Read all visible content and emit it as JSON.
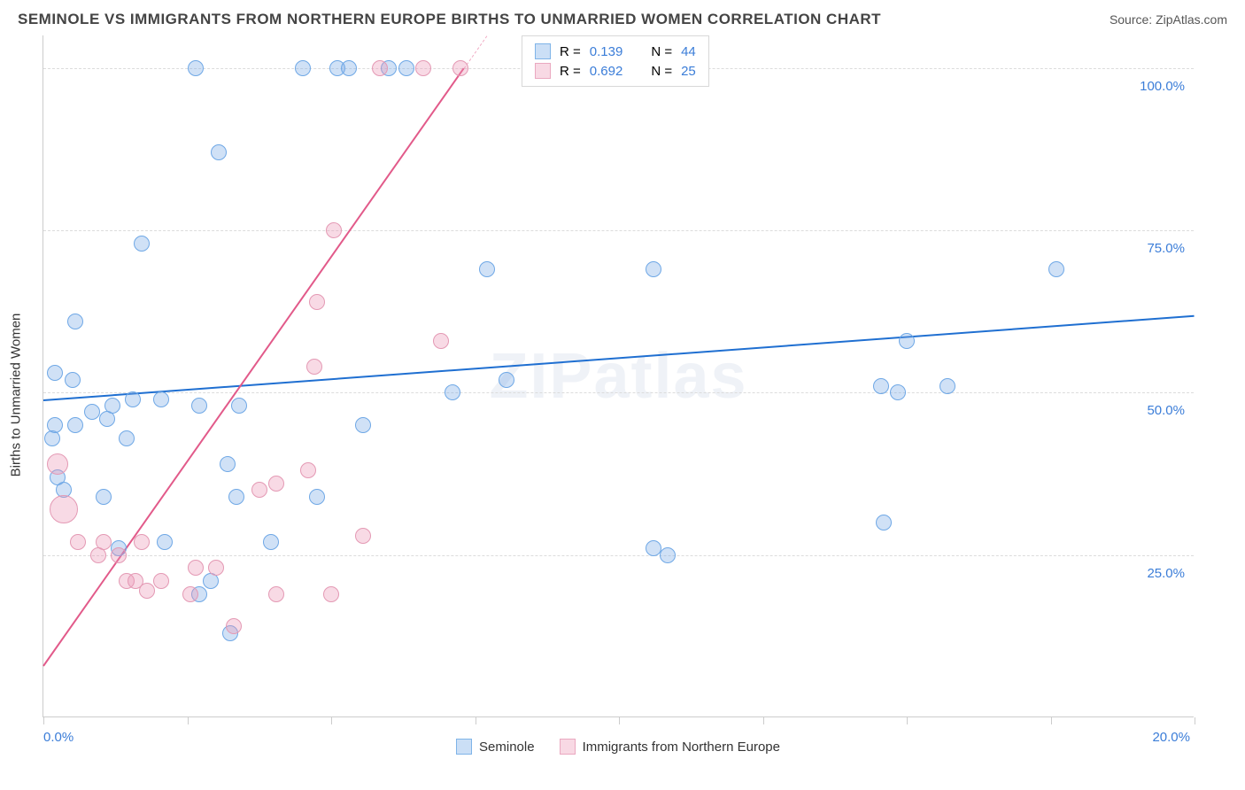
{
  "header": {
    "title": "SEMINOLE VS IMMIGRANTS FROM NORTHERN EUROPE BIRTHS TO UNMARRIED WOMEN CORRELATION CHART",
    "source": "Source: ZipAtlas.com"
  },
  "chart": {
    "type": "scatter",
    "y_axis_label": "Births to Unmarried Women",
    "watermark": "ZIPatlas",
    "background_color": "#ffffff",
    "grid_color": "#dcdcdc",
    "axis_color": "#cccccc",
    "xlim": [
      0,
      20
    ],
    "ylim": [
      0,
      105
    ],
    "x_ticks": [
      0,
      2.5,
      5,
      7.5,
      10,
      12.5,
      15,
      17.5,
      20
    ],
    "x_tick_labels": {
      "0": "0.0%",
      "20": "20.0%"
    },
    "y_gridlines": [
      25,
      50,
      75,
      100
    ],
    "y_tick_labels": {
      "25": "25.0%",
      "50": "50.0%",
      "75": "75.0%",
      "100": "100.0%"
    },
    "point_radius": 9,
    "point_stroke_width": 1.5,
    "series": [
      {
        "name": "Seminole",
        "fill": "rgba(120,170,230,0.35)",
        "stroke": "#6fa8e6",
        "legend_fill": "rgba(140,185,235,0.45)",
        "legend_stroke": "#7fb4e8",
        "trend": {
          "color": "#1f6fd1",
          "y_at_x0": 49,
          "y_at_xmax": 62,
          "solid_until_x": 20
        },
        "R": "0.139",
        "N": "44",
        "points": [
          {
            "x": 0.15,
            "y": 43
          },
          {
            "x": 0.2,
            "y": 45
          },
          {
            "x": 0.25,
            "y": 37
          },
          {
            "x": 0.35,
            "y": 35
          },
          {
            "x": 0.2,
            "y": 53
          },
          {
            "x": 0.5,
            "y": 52
          },
          {
            "x": 0.55,
            "y": 61
          },
          {
            "x": 0.55,
            "y": 45
          },
          {
            "x": 0.85,
            "y": 47
          },
          {
            "x": 1.05,
            "y": 34
          },
          {
            "x": 1.1,
            "y": 46
          },
          {
            "x": 1.2,
            "y": 48
          },
          {
            "x": 1.3,
            "y": 26
          },
          {
            "x": 1.45,
            "y": 43
          },
          {
            "x": 1.55,
            "y": 49
          },
          {
            "x": 1.7,
            "y": 73
          },
          {
            "x": 2.05,
            "y": 49
          },
          {
            "x": 2.1,
            "y": 27
          },
          {
            "x": 2.65,
            "y": 100
          },
          {
            "x": 2.7,
            "y": 48
          },
          {
            "x": 2.7,
            "y": 19
          },
          {
            "x": 2.9,
            "y": 21
          },
          {
            "x": 3.05,
            "y": 87
          },
          {
            "x": 3.2,
            "y": 39
          },
          {
            "x": 3.25,
            "y": 13
          },
          {
            "x": 3.35,
            "y": 34
          },
          {
            "x": 3.4,
            "y": 48
          },
          {
            "x": 3.95,
            "y": 27
          },
          {
            "x": 4.5,
            "y": 100
          },
          {
            "x": 4.75,
            "y": 34
          },
          {
            "x": 5.1,
            "y": 100
          },
          {
            "x": 5.3,
            "y": 100
          },
          {
            "x": 5.55,
            "y": 45
          },
          {
            "x": 6.0,
            "y": 100
          },
          {
            "x": 6.3,
            "y": 100
          },
          {
            "x": 7.1,
            "y": 50
          },
          {
            "x": 7.7,
            "y": 69
          },
          {
            "x": 8.05,
            "y": 52
          },
          {
            "x": 10.6,
            "y": 69
          },
          {
            "x": 10.6,
            "y": 26
          },
          {
            "x": 10.85,
            "y": 25
          },
          {
            "x": 14.6,
            "y": 30
          },
          {
            "x": 14.55,
            "y": 51
          },
          {
            "x": 14.85,
            "y": 50
          },
          {
            "x": 15.0,
            "y": 58
          },
          {
            "x": 15.7,
            "y": 51
          },
          {
            "x": 17.6,
            "y": 69
          }
        ]
      },
      {
        "name": "Immigrants from Northern Europe",
        "fill": "rgba(235,150,180,0.35)",
        "stroke": "#e499b4",
        "legend_fill": "rgba(240,170,195,0.45)",
        "legend_stroke": "#eaa8c0",
        "trend": {
          "color": "#e25a8a",
          "y_at_x0": 8,
          "y_at_xmax": 260,
          "solid_until_x": 7.3
        },
        "R": "0.692",
        "N": "25",
        "points": [
          {
            "x": 0.25,
            "y": 39,
            "r": 12
          },
          {
            "x": 0.35,
            "y": 32,
            "r": 16
          },
          {
            "x": 0.6,
            "y": 27
          },
          {
            "x": 0.95,
            "y": 25
          },
          {
            "x": 1.05,
            "y": 27
          },
          {
            "x": 1.3,
            "y": 25
          },
          {
            "x": 1.45,
            "y": 21
          },
          {
            "x": 1.6,
            "y": 21
          },
          {
            "x": 1.7,
            "y": 27
          },
          {
            "x": 1.8,
            "y": 19.5
          },
          {
            "x": 2.05,
            "y": 21
          },
          {
            "x": 2.55,
            "y": 19
          },
          {
            "x": 2.65,
            "y": 23
          },
          {
            "x": 3.0,
            "y": 23
          },
          {
            "x": 3.3,
            "y": 14
          },
          {
            "x": 3.75,
            "y": 35
          },
          {
            "x": 4.05,
            "y": 36
          },
          {
            "x": 4.05,
            "y": 19
          },
          {
            "x": 4.6,
            "y": 38
          },
          {
            "x": 4.7,
            "y": 54
          },
          {
            "x": 4.75,
            "y": 64
          },
          {
            "x": 5.0,
            "y": 19
          },
          {
            "x": 5.05,
            "y": 75
          },
          {
            "x": 5.55,
            "y": 28
          },
          {
            "x": 5.85,
            "y": 100
          },
          {
            "x": 6.6,
            "y": 100
          },
          {
            "x": 6.9,
            "y": 58
          },
          {
            "x": 7.25,
            "y": 100
          }
        ]
      }
    ],
    "legend_top_labels": {
      "R": "R =",
      "N": "N ="
    },
    "legend_bottom": [
      {
        "label": "Seminole",
        "series": 0
      },
      {
        "label": "Immigrants from Northern Europe",
        "series": 1
      }
    ]
  }
}
